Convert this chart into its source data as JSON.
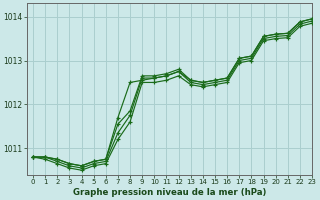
{
  "title": "Graphe pression niveau de la mer (hPa)",
  "background_color": "#cce8e8",
  "line_color": "#1a6b1a",
  "grid_color": "#aacece",
  "xlim": [
    -0.5,
    23
  ],
  "ylim": [
    1010.4,
    1014.3
  ],
  "yticks": [
    1011,
    1012,
    1013,
    1014
  ],
  "xticks": [
    0,
    1,
    2,
    3,
    4,
    5,
    6,
    7,
    8,
    9,
    10,
    11,
    12,
    13,
    14,
    15,
    16,
    17,
    18,
    19,
    20,
    21,
    22,
    23
  ],
  "series": [
    [
      1010.8,
      1010.8,
      1010.75,
      1010.65,
      1010.6,
      1010.7,
      1010.75,
      1011.55,
      1011.85,
      1012.65,
      1012.65,
      1012.7,
      1012.8,
      1012.55,
      1012.5,
      1012.55,
      1012.6,
      1013.05,
      1013.1,
      1013.55,
      1013.6,
      1013.62,
      1013.88,
      1013.95
    ],
    [
      1010.8,
      1010.8,
      1010.75,
      1010.65,
      1010.6,
      1010.7,
      1010.75,
      1011.7,
      1012.5,
      1012.55,
      1012.6,
      1012.65,
      1012.75,
      1012.55,
      1012.5,
      1012.55,
      1012.6,
      1013.05,
      1013.1,
      1013.55,
      1013.6,
      1013.62,
      1013.88,
      1013.95
    ],
    [
      1010.8,
      1010.8,
      1010.7,
      1010.6,
      1010.55,
      1010.65,
      1010.7,
      1011.35,
      1011.75,
      1012.6,
      1012.6,
      1012.65,
      1012.75,
      1012.5,
      1012.45,
      1012.5,
      1012.55,
      1013.0,
      1013.05,
      1013.5,
      1013.55,
      1013.57,
      1013.83,
      1013.9
    ],
    [
      1010.8,
      1010.75,
      1010.65,
      1010.55,
      1010.5,
      1010.6,
      1010.65,
      1011.2,
      1011.6,
      1012.5,
      1012.5,
      1012.55,
      1012.65,
      1012.45,
      1012.4,
      1012.45,
      1012.5,
      1012.95,
      1013.0,
      1013.45,
      1013.5,
      1013.52,
      1013.78,
      1013.85
    ]
  ]
}
